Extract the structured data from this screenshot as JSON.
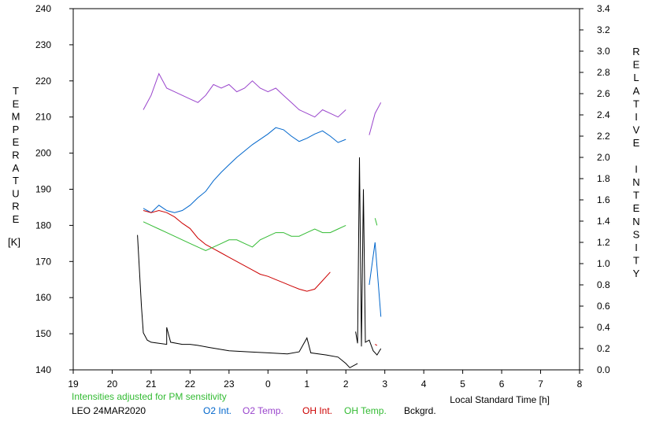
{
  "chart_data": {
    "type": "line",
    "left_axis_label": "TEMPERATURE",
    "left_axis_unit": "[K]",
    "right_axis_label": "RELATIVE INTENSITY",
    "x_axis_label": "Local Standard Time [h]",
    "x_ticks": [
      "19",
      "20",
      "21",
      "22",
      "23",
      "0",
      "1",
      "2",
      "3",
      "4",
      "5",
      "6",
      "7",
      "8"
    ],
    "xlim": [
      19,
      32
    ],
    "left_ticks": [
      "140",
      "150",
      "160",
      "170",
      "180",
      "190",
      "200",
      "210",
      "220",
      "230",
      "240"
    ],
    "ylim_left": [
      140,
      240
    ],
    "right_ticks": [
      "0.0",
      "0.2",
      "0.4",
      "0.6",
      "0.8",
      "1.0",
      "1.2",
      "1.4",
      "1.6",
      "1.8",
      "2.0",
      "2.2",
      "2.4",
      "2.6",
      "2.8",
      "3.0",
      "3.2",
      "3.4"
    ],
    "ylim_right": [
      0,
      3.4
    ],
    "note": "Intensities adjusted for PM sensitivity",
    "station": "LEO 24MAR2020",
    "legend_placement": "bottom",
    "series": [
      {
        "name": "O2 Int.",
        "axis": "right",
        "color": "#0066cc",
        "segments": [
          [
            [
              20.8,
              1.52
            ],
            [
              21.0,
              1.48
            ],
            [
              21.2,
              1.55
            ],
            [
              21.4,
              1.5
            ],
            [
              21.6,
              1.48
            ],
            [
              21.8,
              1.5
            ],
            [
              22.0,
              1.55
            ],
            [
              22.2,
              1.62
            ],
            [
              22.4,
              1.68
            ],
            [
              22.6,
              1.78
            ],
            [
              22.8,
              1.86
            ],
            [
              23.0,
              1.93
            ],
            [
              23.2,
              2.0
            ],
            [
              23.4,
              2.06
            ],
            [
              23.6,
              2.12
            ],
            [
              23.8,
              2.17
            ],
            [
              24.0,
              2.22
            ],
            [
              24.2,
              2.28
            ],
            [
              24.4,
              2.26
            ],
            [
              24.6,
              2.2
            ],
            [
              24.8,
              2.15
            ],
            [
              25.0,
              2.18
            ],
            [
              25.2,
              2.22
            ],
            [
              25.4,
              2.25
            ],
            [
              25.6,
              2.2
            ],
            [
              25.8,
              2.14
            ],
            [
              26.0,
              2.17
            ]
          ],
          [
            [
              26.6,
              0.8
            ],
            [
              26.75,
              1.2
            ],
            [
              26.9,
              0.5
            ]
          ]
        ]
      },
      {
        "name": "O2 Temp.",
        "axis": "left",
        "color": "#9944cc",
        "segments": [
          [
            [
              20.8,
              212
            ],
            [
              21.0,
              216
            ],
            [
              21.2,
              222
            ],
            [
              21.4,
              218
            ],
            [
              21.6,
              217
            ],
            [
              21.8,
              216
            ],
            [
              22.0,
              215
            ],
            [
              22.2,
              214
            ],
            [
              22.4,
              216
            ],
            [
              22.6,
              219
            ],
            [
              22.8,
              218
            ],
            [
              23.0,
              219
            ],
            [
              23.2,
              217
            ],
            [
              23.4,
              218
            ],
            [
              23.6,
              220
            ],
            [
              23.8,
              218
            ],
            [
              24.0,
              217
            ],
            [
              24.2,
              218
            ],
            [
              24.4,
              216
            ],
            [
              24.6,
              214
            ],
            [
              24.8,
              212
            ],
            [
              25.0,
              211
            ],
            [
              25.2,
              210
            ],
            [
              25.4,
              212
            ],
            [
              25.6,
              211
            ],
            [
              25.8,
              210
            ],
            [
              26.0,
              212
            ]
          ],
          [
            [
              26.6,
              205
            ],
            [
              26.75,
              211
            ],
            [
              26.9,
              214
            ]
          ]
        ]
      },
      {
        "name": "OH Int.",
        "axis": "right",
        "color": "#cc0000",
        "segments": [
          [
            [
              20.8,
              1.5
            ],
            [
              21.0,
              1.48
            ],
            [
              21.2,
              1.5
            ],
            [
              21.4,
              1.48
            ],
            [
              21.6,
              1.44
            ],
            [
              21.8,
              1.38
            ],
            [
              22.0,
              1.33
            ],
            [
              22.2,
              1.24
            ],
            [
              22.4,
              1.18
            ],
            [
              22.6,
              1.14
            ],
            [
              22.8,
              1.1
            ],
            [
              23.0,
              1.06
            ],
            [
              23.2,
              1.02
            ],
            [
              23.4,
              0.98
            ],
            [
              23.6,
              0.94
            ],
            [
              23.8,
              0.9
            ],
            [
              24.0,
              0.88
            ],
            [
              24.2,
              0.85
            ],
            [
              24.4,
              0.82
            ],
            [
              24.6,
              0.79
            ],
            [
              24.8,
              0.76
            ],
            [
              25.0,
              0.74
            ],
            [
              25.2,
              0.76
            ],
            [
              25.4,
              0.84
            ],
            [
              25.6,
              0.92
            ]
          ],
          [
            [
              26.75,
              0.24
            ],
            [
              26.8,
              0.23
            ]
          ]
        ]
      },
      {
        "name": "OH Temp.",
        "axis": "left",
        "color": "#33bb33",
        "segments": [
          [
            [
              20.8,
              181
            ],
            [
              21.0,
              180
            ],
            [
              21.2,
              179
            ],
            [
              21.4,
              178
            ],
            [
              21.6,
              177
            ],
            [
              21.8,
              176
            ],
            [
              22.0,
              175
            ],
            [
              22.2,
              174
            ],
            [
              22.4,
              173
            ],
            [
              22.6,
              174
            ],
            [
              22.8,
              175
            ],
            [
              23.0,
              176
            ],
            [
              23.2,
              176
            ],
            [
              23.4,
              175
            ],
            [
              23.6,
              174
            ],
            [
              23.8,
              176
            ],
            [
              24.0,
              177
            ],
            [
              24.2,
              178
            ],
            [
              24.4,
              178
            ],
            [
              24.6,
              177
            ],
            [
              24.8,
              177
            ],
            [
              25.0,
              178
            ],
            [
              25.2,
              179
            ],
            [
              25.4,
              178
            ],
            [
              25.6,
              178
            ],
            [
              25.8,
              179
            ],
            [
              26.0,
              180
            ]
          ],
          [
            [
              26.75,
              182
            ],
            [
              26.8,
              180
            ]
          ]
        ]
      },
      {
        "name": "Bckgrd.",
        "axis": "right",
        "color": "#000000",
        "segments": [
          [
            [
              20.65,
              1.27
            ],
            [
              20.75,
              0.6
            ],
            [
              20.8,
              0.35
            ],
            [
              20.9,
              0.28
            ],
            [
              21.0,
              0.26
            ],
            [
              21.2,
              0.25
            ],
            [
              21.4,
              0.24
            ],
            [
              21.4,
              0.4
            ],
            [
              21.5,
              0.26
            ],
            [
              21.8,
              0.24
            ],
            [
              22.0,
              0.24
            ],
            [
              22.2,
              0.23
            ],
            [
              22.5,
              0.21
            ],
            [
              23.0,
              0.18
            ],
            [
              23.5,
              0.17
            ],
            [
              24.0,
              0.16
            ],
            [
              24.5,
              0.15
            ],
            [
              24.8,
              0.17
            ],
            [
              25.0,
              0.3
            ],
            [
              25.1,
              0.16
            ],
            [
              25.5,
              0.14
            ],
            [
              25.8,
              0.12
            ],
            [
              26.0,
              0.06
            ],
            [
              26.1,
              0.02
            ],
            [
              26.3,
              0.06
            ]
          ],
          [
            [
              26.25,
              0.36
            ],
            [
              26.3,
              0.25
            ],
            [
              26.35,
              2.0
            ],
            [
              26.4,
              0.22
            ],
            [
              26.45,
              1.7
            ],
            [
              26.5,
              0.26
            ],
            [
              26.6,
              0.28
            ],
            [
              26.7,
              0.18
            ],
            [
              26.8,
              0.14
            ],
            [
              26.9,
              0.2
            ]
          ]
        ]
      }
    ]
  }
}
